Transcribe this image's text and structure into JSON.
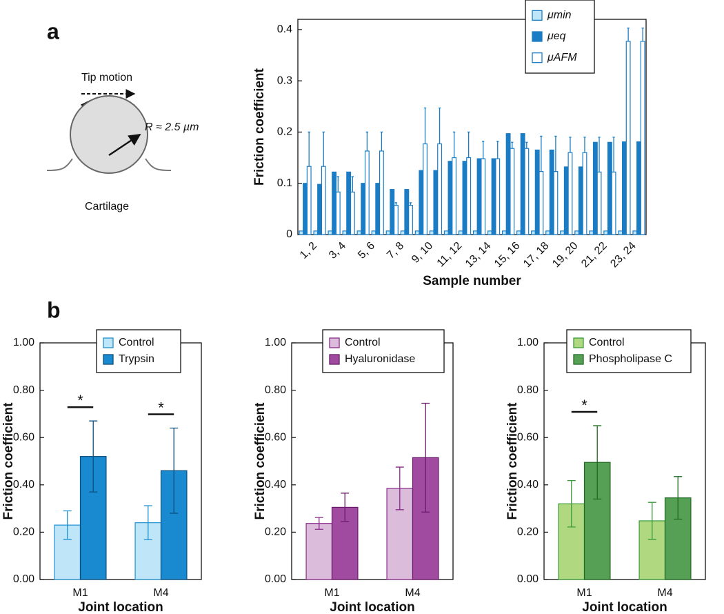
{
  "panel_labels": [
    "a",
    "b"
  ],
  "diagram": {
    "tip_label": "Tip motion",
    "radius_label": "R ≈ 2.5 µm",
    "surface_label": "Cartilage"
  },
  "chart_data": [
    {
      "type": "bar",
      "xlabel": "Sample number",
      "ylabel": "Friction coefficient",
      "categories": [
        "1, 2",
        null,
        "3, 4",
        null,
        "5, 6",
        null,
        "7, 8",
        null,
        "9, 10",
        null,
        "11, 12",
        null,
        "13, 14",
        null,
        "15, 16",
        null,
        "17, 18",
        null,
        "19, 20",
        null,
        "21, 22",
        null,
        "23, 24",
        null
      ],
      "ylim": [
        0,
        0.42
      ],
      "yticks": [
        0,
        0.1,
        0.2,
        0.3,
        0.4
      ],
      "grid": false,
      "legend": "top-right",
      "series": [
        {
          "name": "μmin",
          "color": "#bfe6f8",
          "edge_color": "#1a7cc4",
          "values": [
            0.007,
            0.007,
            0.007,
            0.007,
            0.007,
            0.007,
            0.007,
            0.007,
            0.007,
            0.007,
            0.007,
            0.007,
            0.007,
            0.007,
            0.007,
            0.007,
            0.007,
            0.007,
            0.007,
            0.007,
            0.007,
            0.007,
            0.007,
            0.007
          ]
        },
        {
          "name": "μeq",
          "color": "#1a7cc4",
          "edge_color": "#1a7cc4",
          "values": [
            0.1,
            0.098,
            0.122,
            0.122,
            0.1,
            0.1,
            0.088,
            0.088,
            0.125,
            0.125,
            0.143,
            0.143,
            0.148,
            0.148,
            0.197,
            0.197,
            0.165,
            0.165,
            0.132,
            0.132,
            0.18,
            0.18,
            0.181,
            0.181
          ]
        },
        {
          "name": "μAFM",
          "color": "#ffffff",
          "edge_color": "#1a7cc4",
          "values": [
            0.133,
            0.133,
            0.083,
            0.083,
            0.163,
            0.163,
            0.057,
            0.057,
            0.177,
            0.177,
            0.15,
            0.15,
            0.148,
            0.148,
            0.168,
            0.168,
            0.123,
            0.123,
            0.16,
            0.16,
            0.122,
            0.122,
            0.377,
            0.377
          ],
          "errors": [
            0.067,
            0.067,
            0.03,
            0.03,
            0.037,
            0.037,
            0.005,
            0.005,
            0.07,
            0.07,
            0.05,
            0.05,
            0.034,
            0.034,
            0.012,
            0.012,
            0.069,
            0.069,
            0.03,
            0.03,
            0.068,
            0.068,
            0.026,
            0.026
          ]
        }
      ]
    },
    {
      "type": "bar",
      "xlabel": "Joint location",
      "ylabel": "Friction coefficient",
      "categories": [
        "M1",
        "M4"
      ],
      "ylim": [
        0,
        1
      ],
      "yticks": [
        {
          "value": 0,
          "label": "0.00"
        },
        {
          "value": 0.2,
          "label": "0.20"
        },
        {
          "value": 0.4,
          "label": "0.40"
        },
        {
          "value": 0.6,
          "label": "0.60"
        },
        {
          "value": 0.8,
          "label": "0.80"
        },
        {
          "value": 1,
          "label": "1.00"
        }
      ],
      "grid": false,
      "legend": "top-center",
      "annotations": [
        "*",
        "*"
      ],
      "series": [
        {
          "name": "Control",
          "color": "#bfe6f8",
          "edge_color": "#1e90d0",
          "values": [
            0.23,
            0.24
          ],
          "errors": [
            0.06,
            0.072
          ]
        },
        {
          "name": "Trypsin",
          "color": "#1a8ad0",
          "edge_color": "#0a4f80",
          "values": [
            0.52,
            0.46
          ],
          "errors": [
            0.15,
            0.18
          ]
        }
      ]
    },
    {
      "type": "bar",
      "xlabel": "Joint location",
      "ylabel": "Friction coefficient",
      "categories": [
        "M1",
        "M4"
      ],
      "ylim": [
        0,
        1
      ],
      "yticks": [
        {
          "value": 0,
          "label": "0.00"
        },
        {
          "value": 0.2,
          "label": "0.20"
        },
        {
          "value": 0.4,
          "label": "0.40"
        },
        {
          "value": 0.6,
          "label": "0.60"
        },
        {
          "value": 0.8,
          "label": "0.80"
        },
        {
          "value": 1,
          "label": "1.00"
        }
      ],
      "grid": false,
      "legend": "top-center",
      "series": [
        {
          "name": "Control",
          "color": "#dbbcdb",
          "edge_color": "#8a2a8a",
          "values": [
            0.237,
            0.385
          ],
          "errors": [
            0.025,
            0.09
          ]
        },
        {
          "name": "Hyaluronidase",
          "color": "#a04aa0",
          "edge_color": "#6a1a6a",
          "values": [
            0.305,
            0.515
          ],
          "errors": [
            0.06,
            0.23
          ]
        }
      ]
    },
    {
      "type": "bar",
      "xlabel": "Joint location",
      "ylabel": "Friction coefficient",
      "categories": [
        "M1",
        "M4"
      ],
      "ylim": [
        0,
        1
      ],
      "yticks": [
        {
          "value": 0,
          "label": "0.00"
        },
        {
          "value": 0.2,
          "label": "0.20"
        },
        {
          "value": 0.4,
          "label": "0.40"
        },
        {
          "value": 0.6,
          "label": "0.60"
        },
        {
          "value": 0.8,
          "label": "0.80"
        },
        {
          "value": 1,
          "label": "1.00"
        }
      ],
      "grid": false,
      "legend": "top-center",
      "annotations": [
        "*",
        null
      ],
      "series": [
        {
          "name": "Control",
          "color": "#b0d880",
          "edge_color": "#3a9a3a",
          "values": [
            0.32,
            0.248
          ],
          "errors": [
            0.098,
            0.078
          ]
        },
        {
          "name": "Phospholipase C",
          "color": "#55a055",
          "edge_color": "#1f6a1f",
          "values": [
            0.495,
            0.345
          ],
          "errors": [
            0.155,
            0.09
          ]
        }
      ]
    }
  ]
}
